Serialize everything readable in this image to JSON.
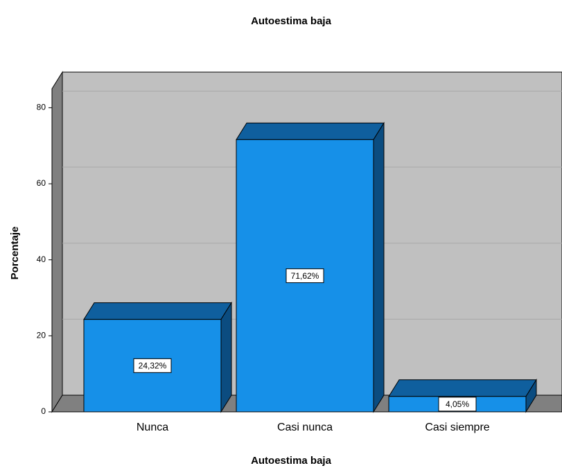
{
  "chart_data": {
    "type": "bar3d",
    "title": "Autoestima baja",
    "x_label": "Autoestima baja",
    "y_label": "Porcentaje",
    "categories": [
      "Nunca",
      "Casi nunca",
      "Casi siempre"
    ],
    "values": [
      24.32,
      71.62,
      4.05
    ],
    "value_labels": [
      "24,32%",
      "71,62%",
      "4,05%"
    ],
    "color": "#1690e8",
    "ylim": [
      0,
      85
    ],
    "yticks": [
      0,
      20,
      40,
      60,
      80
    ],
    "grid": true
  }
}
